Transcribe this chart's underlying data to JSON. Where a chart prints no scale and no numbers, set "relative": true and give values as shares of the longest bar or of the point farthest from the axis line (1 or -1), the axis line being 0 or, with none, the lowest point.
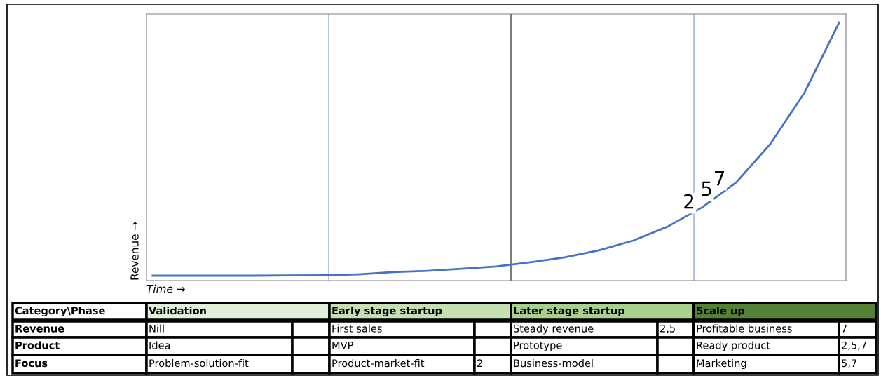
{
  "chart_data": {
    "type": "line",
    "relative": true,
    "xlabel": "Time →",
    "ylabel": "Revenue →",
    "categories": [
      null,
      null,
      null,
      null,
      null,
      null,
      null,
      null,
      null,
      null,
      null,
      null,
      null,
      null,
      null,
      null,
      null,
      null,
      null,
      null,
      null
    ],
    "series": [
      {
        "color": "#4472c4",
        "values": [
          0.019,
          0.019,
          0.019,
          0.019,
          0.02,
          0.021,
          0.024,
          0.033,
          0.038,
          0.046,
          0.055,
          0.071,
          0.09,
          0.117,
          0.155,
          0.209,
          0.283,
          0.38,
          0.53,
          0.73,
          1
        ]
      }
    ],
    "marker": "none",
    "line_style": "solid",
    "tick_labels": false,
    "annotations": [
      {
        "text": "2",
        "y": 0.3
      },
      {
        "text": "5",
        "y": 0.35
      },
      {
        "text": "7",
        "y": 0.39
      },
      "Category\\Phase",
      "Validation",
      "Early stage startup",
      "Later stage startup",
      "Scale up",
      "Revenue",
      "Nill",
      null,
      "First sales",
      null,
      "Steady revenue",
      "2,5",
      "Profitable business",
      "7",
      "Product",
      "Idea",
      null,
      "MVP",
      null,
      "Prototype",
      null,
      "Ready product",
      "2,5,7",
      "Focus",
      "Problem-solution-fit",
      null,
      "Product-market-fit",
      "2",
      "Business-model",
      null,
      "Marketing",
      "5,7"
    ]
  }
}
